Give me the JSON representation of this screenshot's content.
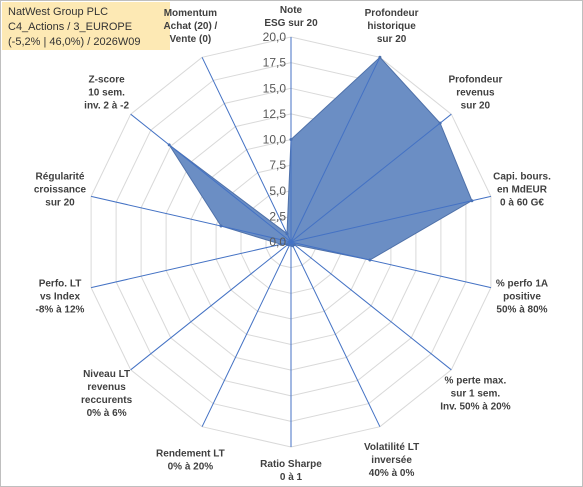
{
  "chart_data": {
    "type": "radar",
    "title_lines": [
      "NatWest Group PLC",
      "C4_Actions / 3_EUROPE",
      "(-5,2% | 46,0%) / 2026W09"
    ],
    "axes": [
      {
        "label": [
          "Note",
          "ESG sur 20"
        ]
      },
      {
        "label": [
          "Profondeur",
          "historique",
          "sur 20"
        ]
      },
      {
        "label": [
          "Profondeur",
          "revenus",
          "sur 20"
        ]
      },
      {
        "label": [
          "Capi. bours.",
          "en MdEUR",
          "0 à 60 G€"
        ]
      },
      {
        "label": [
          "% perfo 1A",
          "positive",
          "50% à 80%"
        ]
      },
      {
        "label": [
          "% perte max.",
          "sur 1 sem.",
          "Inv. 50% à 20%"
        ]
      },
      {
        "label": [
          "Volatilité LT",
          "inversée",
          "40% à 0%"
        ]
      },
      {
        "label": [
          "Ratio Sharpe",
          "0 à 1"
        ]
      },
      {
        "label": [
          "Rendement LT",
          "0% à 20%"
        ]
      },
      {
        "label": [
          "Niveau LT",
          "revenus",
          "reccurents",
          "0% à 6%"
        ]
      },
      {
        "label": [
          "Perfo. LT",
          "vs Index",
          "-8% à 12%"
        ]
      },
      {
        "label": [
          "Régularité",
          "croissance",
          "sur 20"
        ]
      },
      {
        "label": [
          "Z-score",
          "10 sem.",
          "inv. 2 à -2"
        ]
      },
      {
        "label": [
          "Momentum",
          "Achat (20) /",
          "Vente (0)"
        ]
      }
    ],
    "values": [
      10.0,
      20.0,
      18.6,
      18.1,
      7.9,
      0.4,
      0.4,
      0.3,
      0.3,
      0.4,
      1.0,
      7.0,
      15.2,
      0.9
    ],
    "rmin": 0,
    "rmax": 20,
    "ticks": [
      "0,0",
      "2,5",
      "5,0",
      "7,5",
      "10,0",
      "12,5",
      "15,0",
      "17,5",
      "20,0"
    ],
    "grid": true,
    "colors": {
      "fill": "#6b8ec4",
      "stroke": "#4f71a9",
      "spoke": "#4472c4",
      "grid": "#d9d9d9",
      "title_bg": "#fde9b4"
    }
  }
}
